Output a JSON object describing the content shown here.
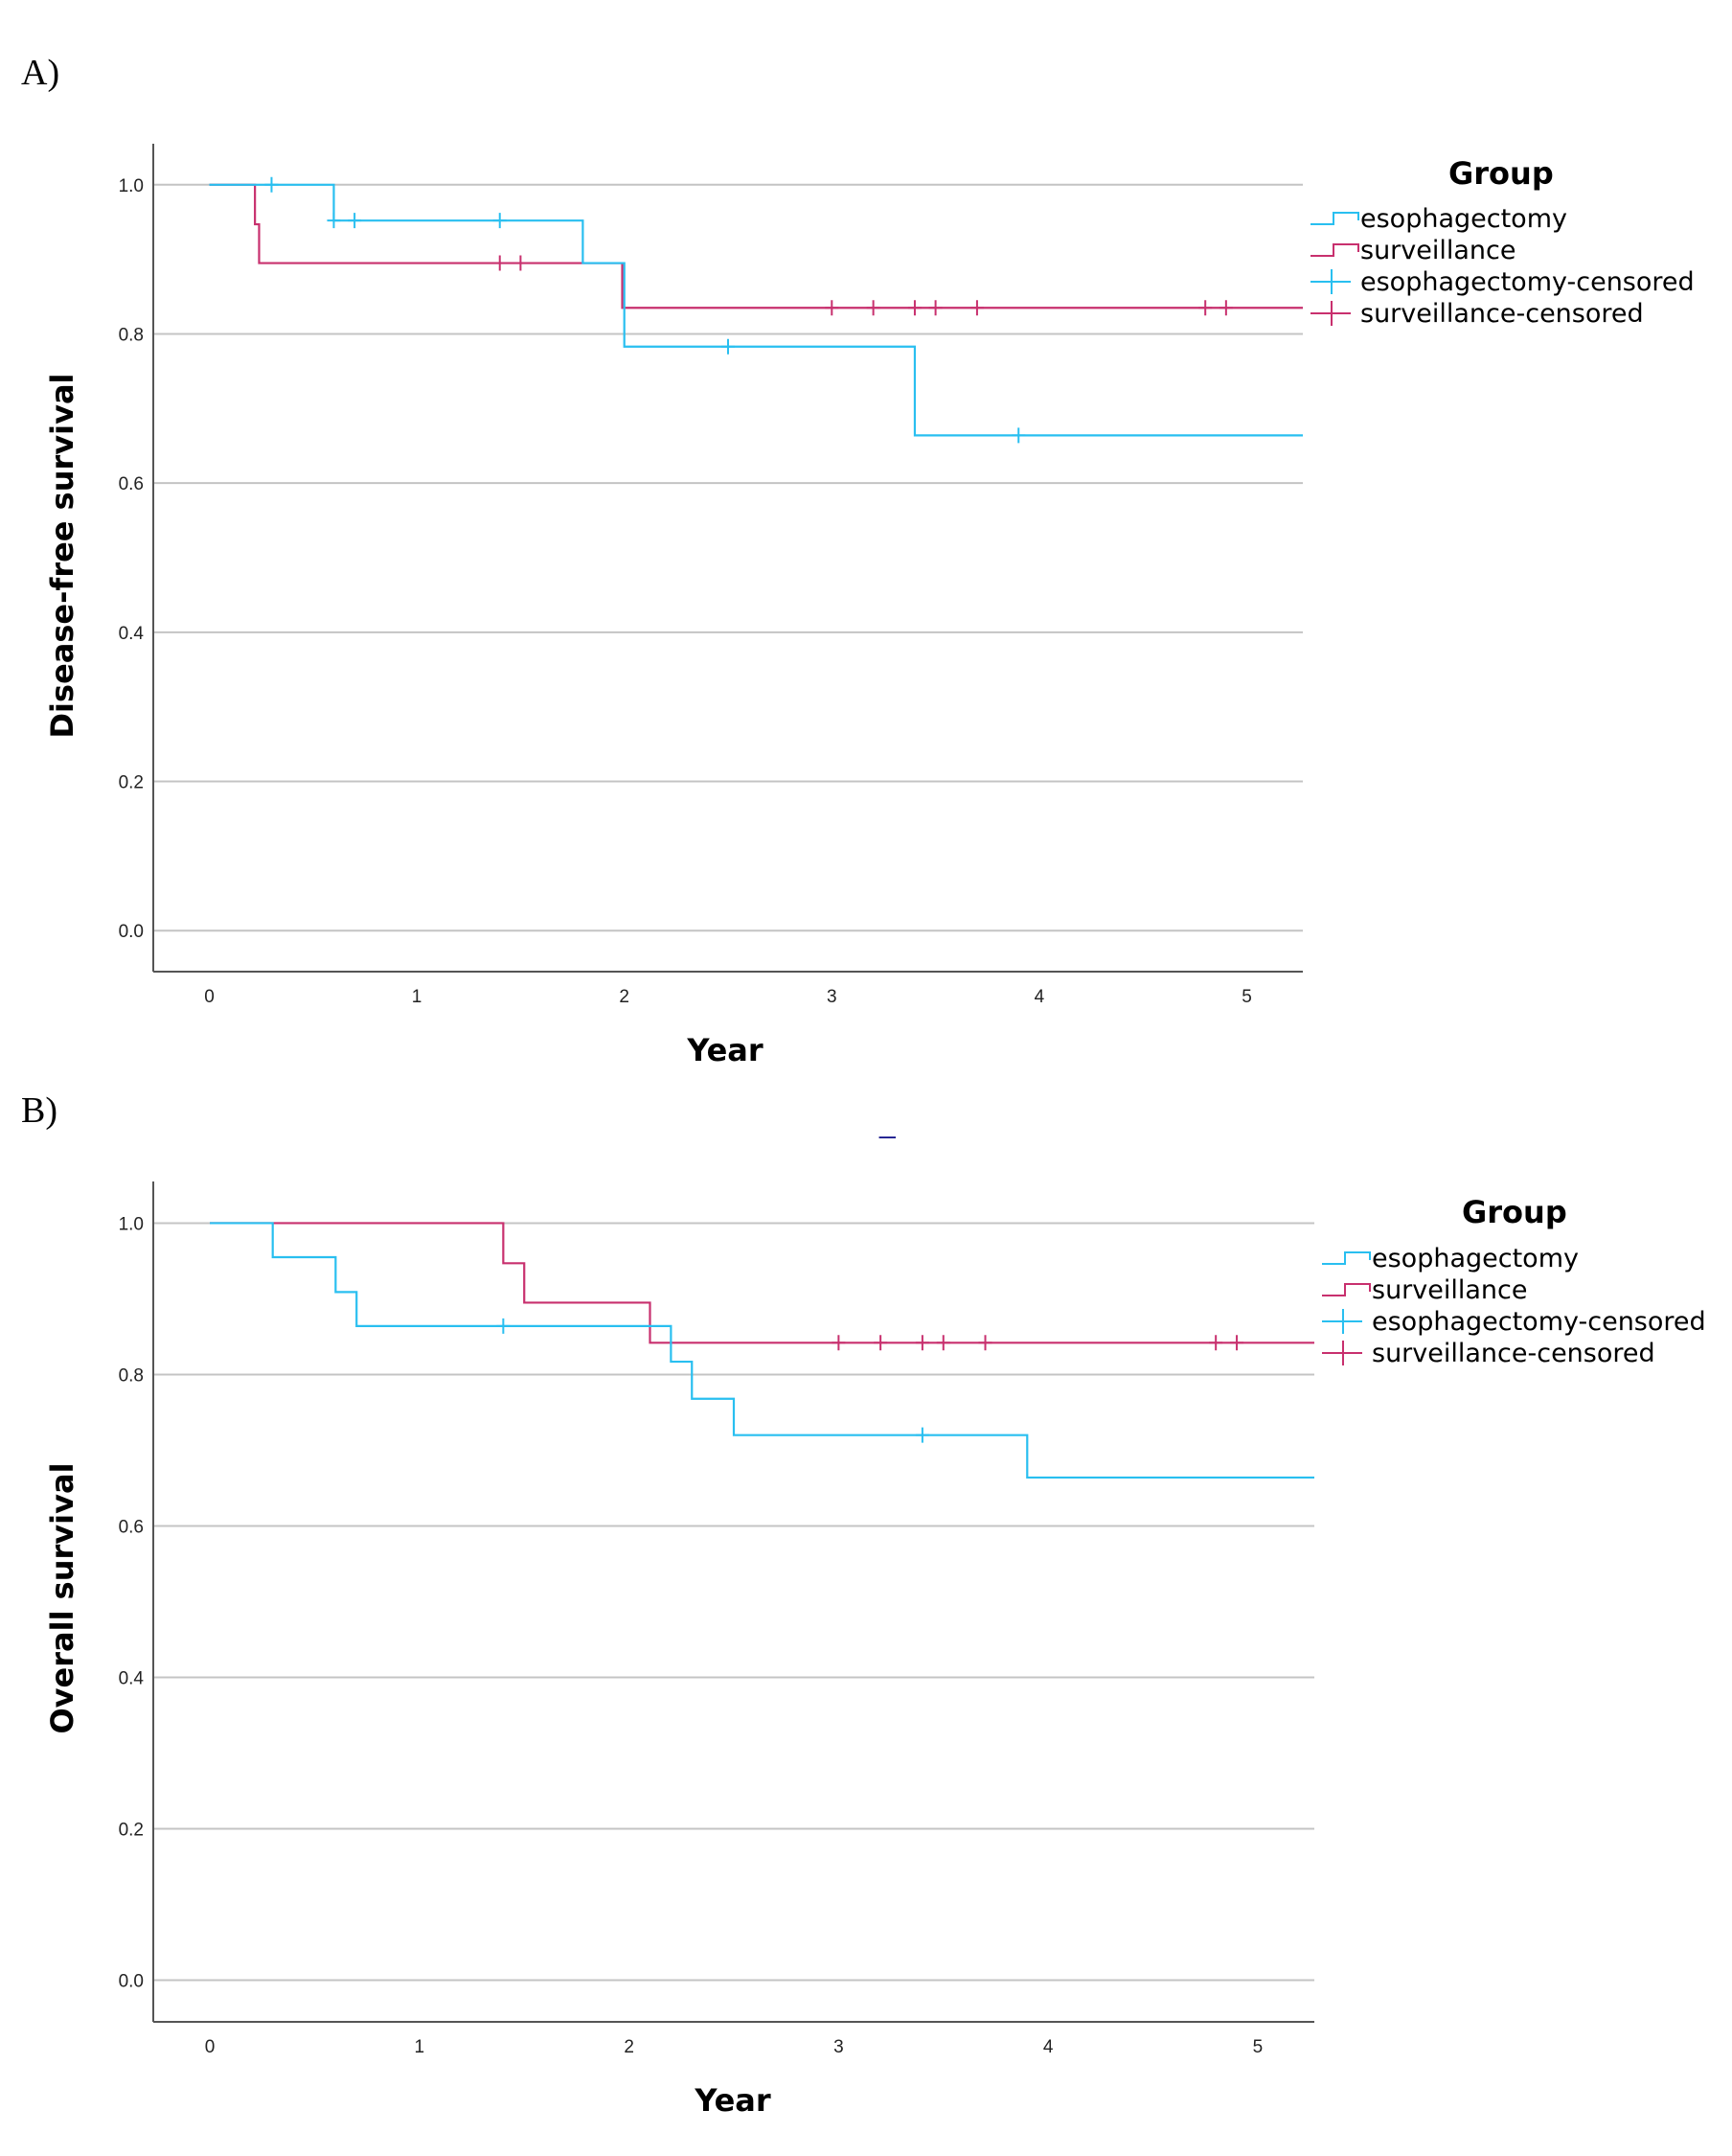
{
  "colors": {
    "esophagectomy": "#29bff0",
    "surveillance": "#c8306e",
    "grid": "#c4c4c4",
    "axis": "#555555",
    "stray_mark": "#1a1a8c"
  },
  "stray_mark": "_",
  "chart_data": [
    {
      "panel_label": "A)",
      "type": "line",
      "subtype": "kaplan-meier step",
      "xlabel": "Year",
      "ylabel": "Disease-free survival",
      "xlim": [
        -0.27,
        5.27
      ],
      "ylim": [
        -0.055,
        1.055
      ],
      "x_ticks": [
        0,
        1,
        2,
        3,
        4,
        5
      ],
      "x_tick_labels": [
        "0",
        "1",
        "2",
        "3",
        "4",
        "5"
      ],
      "y_ticks": [
        0.0,
        0.2,
        0.4,
        0.6,
        0.8,
        1.0
      ],
      "y_tick_labels": [
        "0.0",
        "0.2",
        "0.4",
        "0.6",
        "0.8",
        "1.0"
      ],
      "grid": "horizontal",
      "legend": {
        "title": "Group",
        "placement": "right",
        "entries": [
          "esophagectomy",
          "surveillance",
          "esophagectomy-censored",
          "surveillance-censored"
        ]
      },
      "series": [
        {
          "name": "esophagectomy",
          "color_key": "esophagectomy",
          "steps": [
            [
              0,
              1.0
            ],
            [
              0.6,
              0.952
            ],
            [
              1.8,
              0.895
            ],
            [
              2.0,
              0.783
            ],
            [
              3.4,
              0.664
            ],
            [
              5.27,
              0.664
            ]
          ],
          "censored": [
            [
              0.3,
              1.0
            ],
            [
              0.6,
              0.952
            ],
            [
              0.7,
              0.952
            ],
            [
              1.4,
              0.952
            ],
            [
              2.5,
              0.783
            ],
            [
              3.9,
              0.664
            ]
          ]
        },
        {
          "name": "surveillance",
          "color_key": "surveillance",
          "steps": [
            [
              0,
              1.0
            ],
            [
              0.22,
              0.947
            ],
            [
              0.24,
              0.895
            ],
            [
              1.99,
              0.835
            ],
            [
              5.27,
              0.835
            ]
          ],
          "censored": [
            [
              1.4,
              0.895
            ],
            [
              1.5,
              0.895
            ],
            [
              3.0,
              0.835
            ],
            [
              3.2,
              0.835
            ],
            [
              3.4,
              0.835
            ],
            [
              3.5,
              0.835
            ],
            [
              3.7,
              0.835
            ],
            [
              4.8,
              0.835
            ],
            [
              4.9,
              0.835
            ]
          ]
        }
      ]
    },
    {
      "panel_label": "B)",
      "type": "line",
      "subtype": "kaplan-meier step",
      "xlabel": "Year",
      "ylabel": "Overall survival",
      "xlim": [
        -0.27,
        5.27
      ],
      "ylim": [
        -0.055,
        1.055
      ],
      "x_ticks": [
        0,
        1,
        2,
        3,
        4,
        5
      ],
      "x_tick_labels": [
        "0",
        "1",
        "2",
        "3",
        "4",
        "5"
      ],
      "y_ticks": [
        0.0,
        0.2,
        0.4,
        0.6,
        0.8,
        1.0
      ],
      "y_tick_labels": [
        "0.0",
        "0.2",
        "0.4",
        "0.6",
        "0.8",
        "1.0"
      ],
      "grid": "horizontal",
      "legend": {
        "title": "Group",
        "placement": "right",
        "entries": [
          "esophagectomy",
          "surveillance",
          "esophagectomy-censored",
          "surveillance-censored"
        ]
      },
      "series": [
        {
          "name": "esophagectomy",
          "color_key": "esophagectomy",
          "steps": [
            [
              0,
              1.0
            ],
            [
              0.3,
              0.955
            ],
            [
              0.6,
              0.909
            ],
            [
              0.7,
              0.864
            ],
            [
              2.2,
              0.817
            ],
            [
              2.3,
              0.768
            ],
            [
              2.5,
              0.72
            ],
            [
              3.9,
              0.664
            ],
            [
              5.27,
              0.664
            ]
          ],
          "censored": [
            [
              1.4,
              0.864
            ],
            [
              3.4,
              0.72
            ]
          ]
        },
        {
          "name": "surveillance",
          "color_key": "surveillance",
          "steps": [
            [
              0,
              1.0
            ],
            [
              1.4,
              0.947
            ],
            [
              1.5,
              0.895
            ],
            [
              2.1,
              0.842
            ],
            [
              5.27,
              0.842
            ]
          ],
          "censored": [
            [
              3.0,
              0.842
            ],
            [
              3.2,
              0.842
            ],
            [
              3.4,
              0.842
            ],
            [
              3.5,
              0.842
            ],
            [
              3.7,
              0.842
            ],
            [
              4.8,
              0.842
            ],
            [
              4.9,
              0.842
            ]
          ]
        }
      ]
    }
  ]
}
